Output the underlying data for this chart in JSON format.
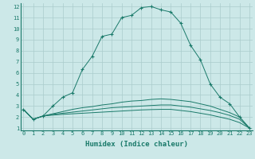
{
  "xlabel": "Humidex (Indice chaleur)",
  "ylabel": "",
  "background_color": "#cce8e8",
  "grid_color": "#aacccc",
  "line_color": "#1a7a6a",
  "xlim": [
    0,
    23
  ],
  "ylim": [
    1,
    12
  ],
  "xticks": [
    0,
    1,
    2,
    3,
    4,
    5,
    6,
    7,
    8,
    9,
    10,
    11,
    12,
    13,
    14,
    15,
    16,
    17,
    18,
    19,
    20,
    21,
    22,
    23
  ],
  "yticks": [
    1,
    2,
    3,
    4,
    5,
    6,
    7,
    8,
    9,
    10,
    11,
    12
  ],
  "series": [
    {
      "x": [
        0,
        1,
        2,
        3,
        4,
        5,
        6,
        7,
        8,
        9,
        10,
        11,
        12,
        13,
        14,
        15,
        16,
        17,
        18,
        19,
        20,
        21,
        22,
        23
      ],
      "y": [
        2.7,
        1.8,
        2.1,
        3.0,
        3.8,
        4.2,
        6.3,
        7.5,
        9.3,
        9.5,
        11.0,
        11.2,
        11.9,
        12.0,
        11.7,
        11.5,
        10.5,
        8.5,
        7.2,
        5.0,
        3.8,
        3.2,
        2.0,
        1.0
      ],
      "with_markers": true
    },
    {
      "x": [
        0,
        1,
        2,
        3,
        4,
        5,
        6,
        7,
        8,
        9,
        10,
        11,
        12,
        13,
        14,
        15,
        16,
        17,
        18,
        19,
        20,
        21,
        22,
        23
      ],
      "y": [
        2.7,
        1.8,
        2.1,
        2.3,
        2.5,
        2.7,
        2.85,
        2.95,
        3.1,
        3.2,
        3.35,
        3.45,
        3.5,
        3.6,
        3.65,
        3.6,
        3.5,
        3.4,
        3.2,
        3.0,
        2.7,
        2.4,
        2.0,
        1.0
      ],
      "with_markers": false
    },
    {
      "x": [
        0,
        1,
        2,
        3,
        4,
        5,
        6,
        7,
        8,
        9,
        10,
        11,
        12,
        13,
        14,
        15,
        16,
        17,
        18,
        19,
        20,
        21,
        22,
        23
      ],
      "y": [
        2.7,
        1.8,
        2.1,
        2.25,
        2.35,
        2.45,
        2.55,
        2.65,
        2.75,
        2.85,
        2.9,
        2.95,
        3.0,
        3.05,
        3.1,
        3.1,
        3.0,
        2.9,
        2.75,
        2.6,
        2.4,
        2.15,
        1.8,
        1.0
      ],
      "with_markers": false
    },
    {
      "x": [
        0,
        1,
        2,
        3,
        4,
        5,
        6,
        7,
        8,
        9,
        10,
        11,
        12,
        13,
        14,
        15,
        16,
        17,
        18,
        19,
        20,
        21,
        22,
        23
      ],
      "y": [
        2.7,
        1.8,
        2.1,
        2.18,
        2.25,
        2.3,
        2.35,
        2.4,
        2.45,
        2.5,
        2.55,
        2.6,
        2.65,
        2.68,
        2.7,
        2.7,
        2.6,
        2.5,
        2.35,
        2.2,
        2.0,
        1.8,
        1.5,
        1.0
      ],
      "with_markers": false
    }
  ]
}
